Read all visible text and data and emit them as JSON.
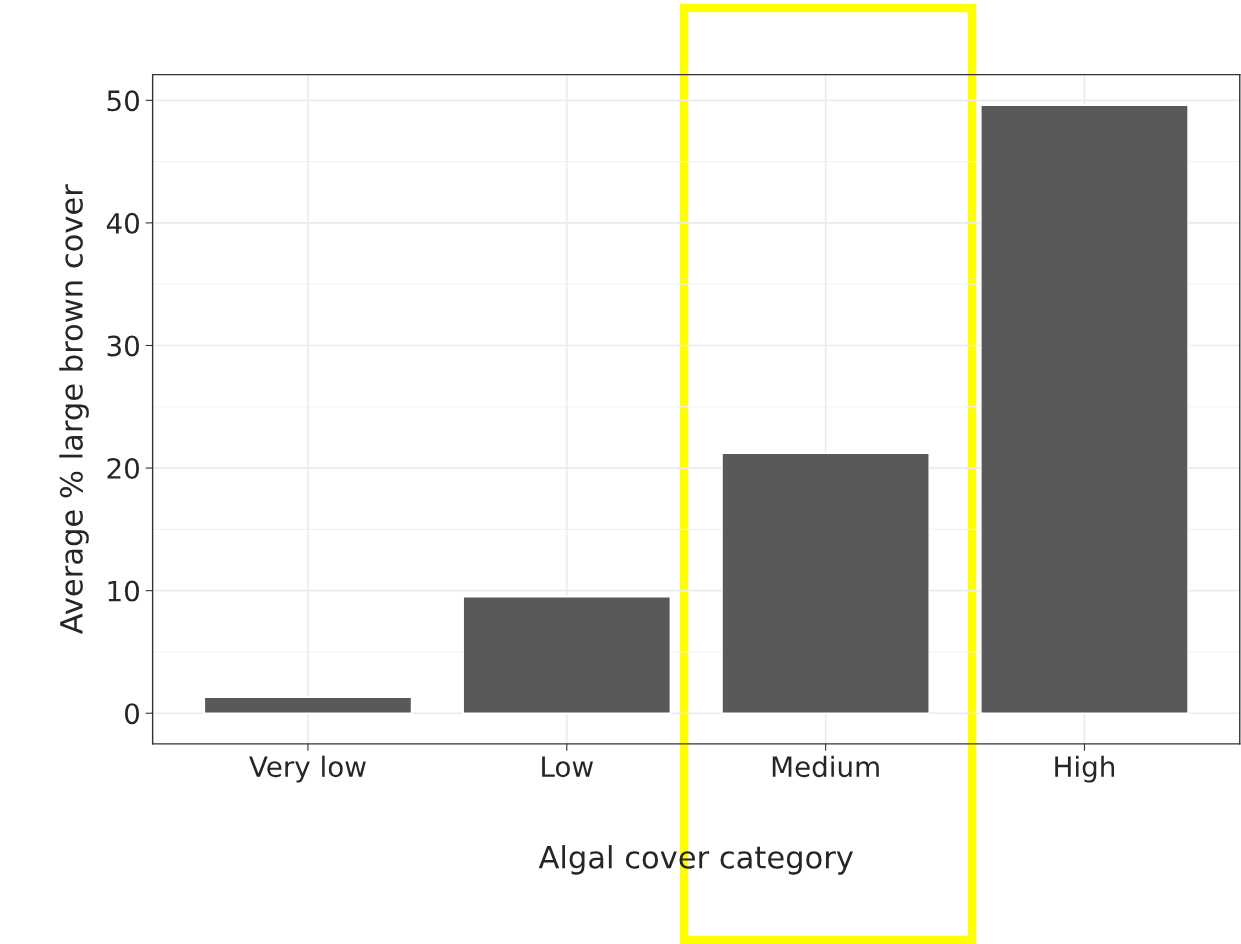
{
  "chart_data": {
    "type": "bar",
    "xlabel": "Algal cover category",
    "ylabel": "Average % large brown cover",
    "categories": [
      "Very low",
      "Low",
      "Medium",
      "High"
    ],
    "values": [
      1.3,
      9.5,
      21.2,
      49.6
    ],
    "color": "#595959",
    "ylim": [
      -2.5,
      52.1
    ],
    "yticks": [
      0,
      10,
      20,
      30,
      40,
      50
    ],
    "grid": true
  }
}
